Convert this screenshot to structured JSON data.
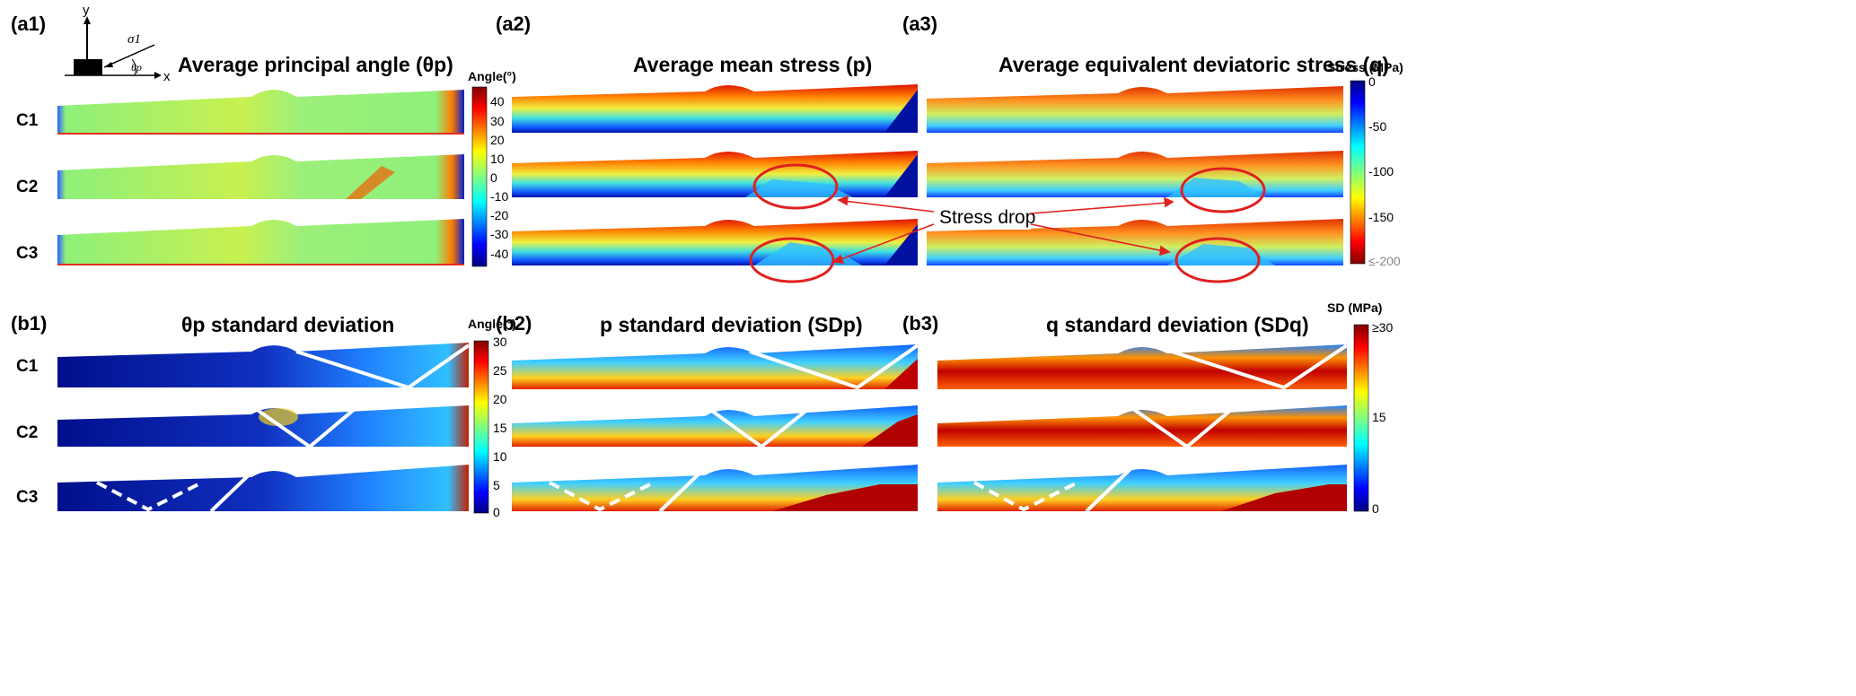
{
  "panel_labels": {
    "a1": "(a1)",
    "a2": "(a2)",
    "a3": "(a3)",
    "b1": "(b1)",
    "b2": "(b2)",
    "b3": "(b3)"
  },
  "row_labels": [
    "C1",
    "C2",
    "C3"
  ],
  "titles": {
    "a1": "Average principal angle (θp)",
    "a2": "Average mean stress (p)",
    "a3": "Average equivalent deviatoric stress (q)",
    "b1": "θp standard deviation",
    "b2": "p standard deviation (SDp)",
    "b3": "q standard deviation (SDq)"
  },
  "inset": {
    "y": "y",
    "x": "x",
    "sigma": "σ1",
    "theta": "θp"
  },
  "annotation": {
    "text": "Stress drop"
  },
  "colorbars": {
    "angle_top": {
      "label": "Angle(°)",
      "ticks": [
        "40",
        "30",
        "20",
        "10",
        "0",
        "-10",
        "-20",
        "-30",
        "-40"
      ]
    },
    "stress": {
      "label": "Stress (MPa)",
      "ticks": [
        "0",
        "-50",
        "-100",
        "-150",
        "≤-200"
      ]
    },
    "angle_bottom": {
      "label": "Angle(°)",
      "ticks": [
        "30",
        "25",
        "20",
        "15",
        "10",
        "5",
        "0"
      ]
    },
    "sd": {
      "label": "SD (MPa)",
      "ticks": [
        "≥30",
        "15",
        "0"
      ]
    }
  },
  "colors": {
    "jet_dark_blue": "#00008f",
    "jet_red": "#a50000",
    "annotation_red": "#e02020",
    "fault_line": "#ffffff"
  }
}
